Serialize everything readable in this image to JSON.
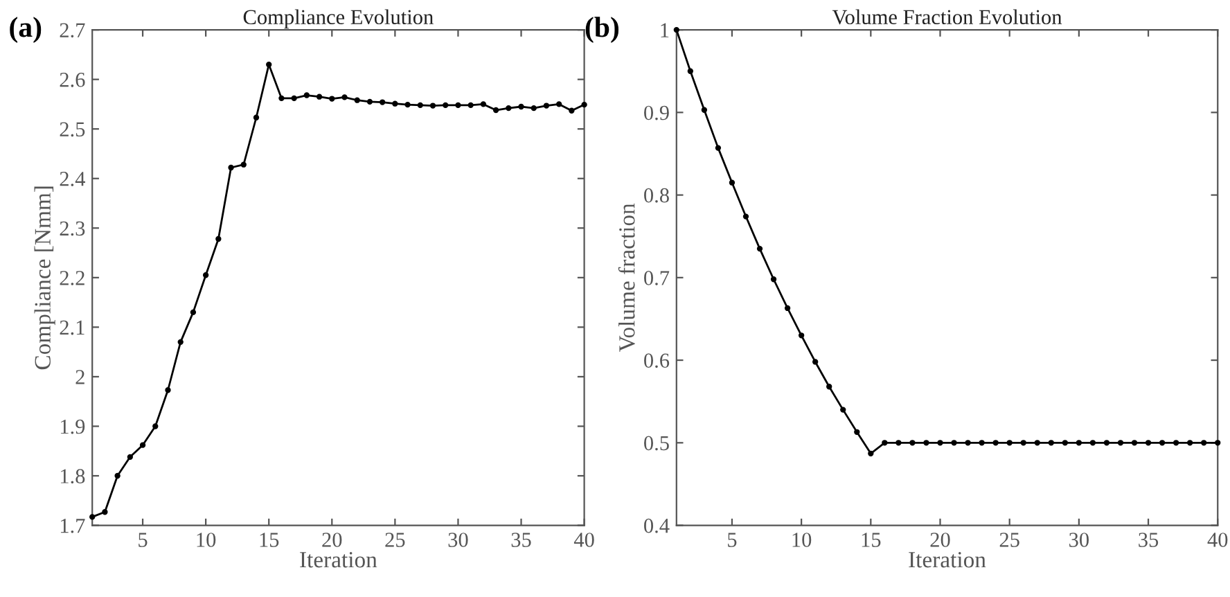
{
  "chart_data": [
    {
      "type": "line",
      "title": "Compliance Evolution",
      "xlabel": "Iteration",
      "ylabel": "Compliance [Nmm]",
      "annotations": [
        "(a)"
      ],
      "x": [
        1,
        2,
        3,
        4,
        5,
        6,
        7,
        8,
        9,
        10,
        11,
        12,
        13,
        14,
        15,
        16,
        17,
        18,
        19,
        20,
        21,
        22,
        23,
        24,
        25,
        26,
        27,
        28,
        29,
        30,
        31,
        32,
        33,
        34,
        35,
        36,
        37,
        38,
        39,
        40
      ],
      "series": [
        {
          "color": "#000000",
          "values": [
            1.717,
            1.727,
            1.8,
            1.838,
            1.862,
            1.9,
            1.973,
            2.07,
            2.13,
            2.205,
            2.278,
            2.422,
            2.428,
            2.523,
            2.63,
            2.562,
            2.562,
            2.568,
            2.565,
            2.561,
            2.564,
            2.558,
            2.555,
            2.554,
            2.551,
            2.549,
            2.548,
            2.547,
            2.548,
            2.548,
            2.548,
            2.55,
            2.538,
            2.542,
            2.545,
            2.542,
            2.547,
            2.55,
            2.537,
            2.549
          ]
        }
      ],
      "xlim": [
        1,
        40
      ],
      "xticks": [
        5,
        10,
        15,
        20,
        25,
        30,
        35,
        40
      ],
      "ylim": [
        1.7,
        2.7
      ],
      "yticks": [
        1.7,
        1.8,
        1.9,
        2,
        2.1,
        2.2,
        2.3,
        2.4,
        2.5,
        2.6,
        2.7
      ],
      "marker": "circle",
      "line_style": "solid",
      "grid": false,
      "legend": false
    },
    {
      "type": "line",
      "title": "Volume Fraction Evolution",
      "xlabel": "Iteration",
      "ylabel": "Volume fraction",
      "annotations": [
        "(b)"
      ],
      "x": [
        1,
        2,
        3,
        4,
        5,
        6,
        7,
        8,
        9,
        10,
        11,
        12,
        13,
        14,
        15,
        16,
        17,
        18,
        19,
        20,
        21,
        22,
        23,
        24,
        25,
        26,
        27,
        28,
        29,
        30,
        31,
        32,
        33,
        34,
        35,
        36,
        37,
        38,
        39,
        40
      ],
      "series": [
        {
          "color": "#000000",
          "values": [
            1.0,
            0.95,
            0.903,
            0.857,
            0.815,
            0.774,
            0.735,
            0.698,
            0.663,
            0.63,
            0.598,
            0.568,
            0.54,
            0.513,
            0.487,
            0.5,
            0.5,
            0.5,
            0.5,
            0.5,
            0.5,
            0.5,
            0.5,
            0.5,
            0.5,
            0.5,
            0.5,
            0.5,
            0.5,
            0.5,
            0.5,
            0.5,
            0.5,
            0.5,
            0.5,
            0.5,
            0.5,
            0.5,
            0.5,
            0.5
          ]
        }
      ],
      "xlim": [
        1,
        40
      ],
      "xticks": [
        5,
        10,
        15,
        20,
        25,
        30,
        35,
        40
      ],
      "ylim": [
        0.4,
        1
      ],
      "yticks": [
        0.4,
        0.5,
        0.6,
        0.7,
        0.8,
        0.9,
        1
      ],
      "marker": "circle",
      "line_style": "solid",
      "grid": false,
      "legend": false
    }
  ]
}
